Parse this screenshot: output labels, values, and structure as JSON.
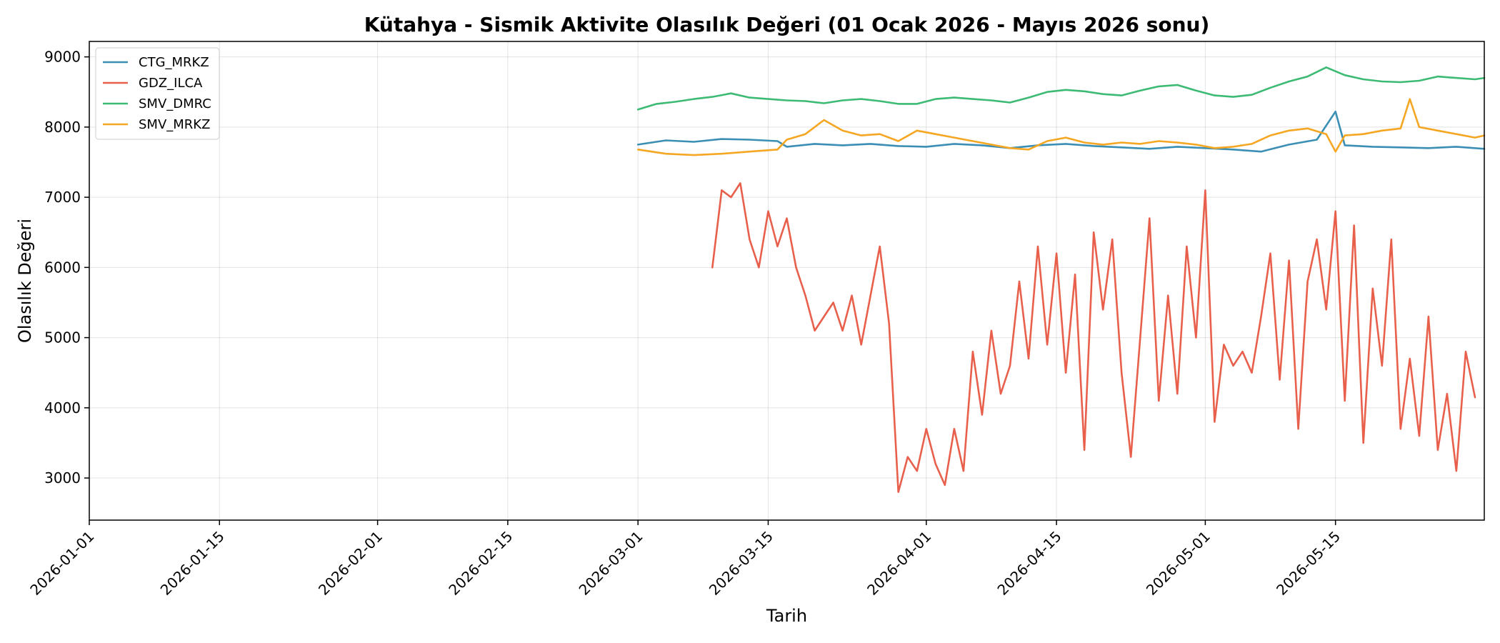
{
  "chart_data": {
    "type": "line",
    "title": "Kütahya - Sismik Aktivite Olasılık Değeri (01 Ocak 2026 - Mayıs 2026 sonu)",
    "xlabel": "Tarih",
    "ylabel": "Olasılık Değeri",
    "x_type": "date",
    "xlim": [
      "2026-01-01",
      "2026-05-31"
    ],
    "ylim": [
      2400,
      9220
    ],
    "x_ticks": [
      "2026-01-01",
      "2026-01-15",
      "2026-02-01",
      "2026-02-15",
      "2026-03-01",
      "2026-03-15",
      "2026-04-01",
      "2026-04-15",
      "2026-05-01",
      "2026-05-15"
    ],
    "y_ticks": [
      3000,
      4000,
      5000,
      6000,
      7000,
      8000,
      9000
    ],
    "grid": true,
    "legend_position": "top-left",
    "series": [
      {
        "name": "CTG_MRKZ",
        "color": "#3b8fb5",
        "points": [
          [
            "2026-03-01",
            7750
          ],
          [
            "2026-03-04",
            7810
          ],
          [
            "2026-03-07",
            7790
          ],
          [
            "2026-03-10",
            7830
          ],
          [
            "2026-03-13",
            7820
          ],
          [
            "2026-03-16",
            7800
          ],
          [
            "2026-03-17",
            7720
          ],
          [
            "2026-03-20",
            7760
          ],
          [
            "2026-03-23",
            7740
          ],
          [
            "2026-03-26",
            7760
          ],
          [
            "2026-03-29",
            7730
          ],
          [
            "2026-04-01",
            7720
          ],
          [
            "2026-04-04",
            7760
          ],
          [
            "2026-04-07",
            7740
          ],
          [
            "2026-04-10",
            7700
          ],
          [
            "2026-04-13",
            7740
          ],
          [
            "2026-04-16",
            7760
          ],
          [
            "2026-04-19",
            7730
          ],
          [
            "2026-04-22",
            7710
          ],
          [
            "2026-04-25",
            7690
          ],
          [
            "2026-04-28",
            7720
          ],
          [
            "2026-05-01",
            7700
          ],
          [
            "2026-05-04",
            7680
          ],
          [
            "2026-05-07",
            7650
          ],
          [
            "2026-05-10",
            7750
          ],
          [
            "2026-05-13",
            7820
          ],
          [
            "2026-05-15",
            8220
          ],
          [
            "2026-05-16",
            7740
          ],
          [
            "2026-05-19",
            7720
          ],
          [
            "2026-05-22",
            7710
          ],
          [
            "2026-05-25",
            7700
          ],
          [
            "2026-05-28",
            7720
          ],
          [
            "2026-05-31",
            7690
          ]
        ]
      },
      {
        "name": "GDZ_ILCA",
        "color": "#e8604c",
        "points": [
          [
            "2026-03-09",
            6000
          ],
          [
            "2026-03-10",
            7100
          ],
          [
            "2026-03-11",
            7000
          ],
          [
            "2026-03-12",
            7200
          ],
          [
            "2026-03-13",
            6400
          ],
          [
            "2026-03-14",
            6000
          ],
          [
            "2026-03-15",
            6800
          ],
          [
            "2026-03-16",
            6300
          ],
          [
            "2026-03-17",
            6700
          ],
          [
            "2026-03-18",
            6000
          ],
          [
            "2026-03-19",
            5600
          ],
          [
            "2026-03-20",
            5100
          ],
          [
            "2026-03-21",
            5300
          ],
          [
            "2026-03-22",
            5500
          ],
          [
            "2026-03-23",
            5100
          ],
          [
            "2026-03-24",
            5600
          ],
          [
            "2026-03-25",
            4900
          ],
          [
            "2026-03-26",
            5600
          ],
          [
            "2026-03-27",
            6300
          ],
          [
            "2026-03-28",
            5200
          ],
          [
            "2026-03-29",
            2800
          ],
          [
            "2026-03-30",
            3300
          ],
          [
            "2026-03-31",
            3100
          ],
          [
            "2026-04-01",
            3700
          ],
          [
            "2026-04-02",
            3200
          ],
          [
            "2026-04-03",
            2900
          ],
          [
            "2026-04-04",
            3700
          ],
          [
            "2026-04-05",
            3100
          ],
          [
            "2026-04-06",
            4800
          ],
          [
            "2026-04-07",
            3900
          ],
          [
            "2026-04-08",
            5100
          ],
          [
            "2026-04-09",
            4200
          ],
          [
            "2026-04-10",
            4600
          ],
          [
            "2026-04-11",
            5800
          ],
          [
            "2026-04-12",
            4700
          ],
          [
            "2026-04-13",
            6300
          ],
          [
            "2026-04-14",
            4900
          ],
          [
            "2026-04-15",
            6200
          ],
          [
            "2026-04-16",
            4500
          ],
          [
            "2026-04-17",
            5900
          ],
          [
            "2026-04-18",
            3400
          ],
          [
            "2026-04-19",
            6500
          ],
          [
            "2026-04-20",
            5400
          ],
          [
            "2026-04-21",
            6400
          ],
          [
            "2026-04-22",
            4500
          ],
          [
            "2026-04-23",
            3300
          ],
          [
            "2026-04-24",
            5000
          ],
          [
            "2026-04-25",
            6700
          ],
          [
            "2026-04-26",
            4100
          ],
          [
            "2026-04-27",
            5600
          ],
          [
            "2026-04-28",
            4200
          ],
          [
            "2026-04-29",
            6300
          ],
          [
            "2026-04-30",
            5000
          ],
          [
            "2026-05-01",
            7100
          ],
          [
            "2026-05-02",
            3800
          ],
          [
            "2026-05-03",
            4900
          ],
          [
            "2026-05-04",
            4600
          ],
          [
            "2026-05-05",
            4800
          ],
          [
            "2026-05-06",
            4500
          ],
          [
            "2026-05-07",
            5300
          ],
          [
            "2026-05-08",
            6200
          ],
          [
            "2026-05-09",
            4400
          ],
          [
            "2026-05-10",
            6100
          ],
          [
            "2026-05-11",
            3700
          ],
          [
            "2026-05-12",
            5800
          ],
          [
            "2026-05-13",
            6400
          ],
          [
            "2026-05-14",
            5400
          ],
          [
            "2026-05-15",
            6800
          ],
          [
            "2026-05-16",
            4100
          ],
          [
            "2026-05-17",
            6600
          ],
          [
            "2026-05-18",
            3500
          ],
          [
            "2026-05-19",
            5700
          ],
          [
            "2026-05-20",
            4600
          ],
          [
            "2026-05-21",
            6400
          ],
          [
            "2026-05-22",
            3700
          ],
          [
            "2026-05-23",
            4700
          ],
          [
            "2026-05-24",
            3600
          ],
          [
            "2026-05-25",
            5300
          ],
          [
            "2026-05-26",
            3400
          ],
          [
            "2026-05-27",
            4200
          ],
          [
            "2026-05-28",
            3100
          ],
          [
            "2026-05-29",
            4800
          ],
          [
            "2026-05-30",
            4150
          ]
        ]
      },
      {
        "name": "SMV_DMRC",
        "color": "#3dba73",
        "points": [
          [
            "2026-03-01",
            8250
          ],
          [
            "2026-03-03",
            8330
          ],
          [
            "2026-03-05",
            8360
          ],
          [
            "2026-03-07",
            8400
          ],
          [
            "2026-03-09",
            8430
          ],
          [
            "2026-03-11",
            8480
          ],
          [
            "2026-03-13",
            8420
          ],
          [
            "2026-03-15",
            8400
          ],
          [
            "2026-03-17",
            8380
          ],
          [
            "2026-03-19",
            8370
          ],
          [
            "2026-03-21",
            8340
          ],
          [
            "2026-03-23",
            8380
          ],
          [
            "2026-03-25",
            8400
          ],
          [
            "2026-03-27",
            8370
          ],
          [
            "2026-03-29",
            8330
          ],
          [
            "2026-03-31",
            8330
          ],
          [
            "2026-04-02",
            8400
          ],
          [
            "2026-04-04",
            8420
          ],
          [
            "2026-04-06",
            8400
          ],
          [
            "2026-04-08",
            8380
          ],
          [
            "2026-04-10",
            8350
          ],
          [
            "2026-04-12",
            8420
          ],
          [
            "2026-04-14",
            8500
          ],
          [
            "2026-04-16",
            8530
          ],
          [
            "2026-04-18",
            8510
          ],
          [
            "2026-04-20",
            8470
          ],
          [
            "2026-04-22",
            8450
          ],
          [
            "2026-04-24",
            8520
          ],
          [
            "2026-04-26",
            8580
          ],
          [
            "2026-04-28",
            8600
          ],
          [
            "2026-04-30",
            8520
          ],
          [
            "2026-05-02",
            8450
          ],
          [
            "2026-05-04",
            8430
          ],
          [
            "2026-05-06",
            8460
          ],
          [
            "2026-05-08",
            8560
          ],
          [
            "2026-05-10",
            8650
          ],
          [
            "2026-05-12",
            8720
          ],
          [
            "2026-05-14",
            8850
          ],
          [
            "2026-05-16",
            8740
          ],
          [
            "2026-05-18",
            8680
          ],
          [
            "2026-05-20",
            8650
          ],
          [
            "2026-05-22",
            8640
          ],
          [
            "2026-05-24",
            8660
          ],
          [
            "2026-05-26",
            8720
          ],
          [
            "2026-05-28",
            8700
          ],
          [
            "2026-05-30",
            8680
          ],
          [
            "2026-05-31",
            8700
          ]
        ]
      },
      {
        "name": "SMV_MRKZ",
        "color": "#f5a623",
        "points": [
          [
            "2026-03-01",
            7680
          ],
          [
            "2026-03-04",
            7620
          ],
          [
            "2026-03-07",
            7600
          ],
          [
            "2026-03-10",
            7620
          ],
          [
            "2026-03-13",
            7650
          ],
          [
            "2026-03-16",
            7680
          ],
          [
            "2026-03-17",
            7820
          ],
          [
            "2026-03-19",
            7900
          ],
          [
            "2026-03-21",
            8100
          ],
          [
            "2026-03-23",
            7950
          ],
          [
            "2026-03-25",
            7880
          ],
          [
            "2026-03-27",
            7900
          ],
          [
            "2026-03-29",
            7800
          ],
          [
            "2026-03-31",
            7950
          ],
          [
            "2026-04-02",
            7900
          ],
          [
            "2026-04-04",
            7850
          ],
          [
            "2026-04-06",
            7800
          ],
          [
            "2026-04-08",
            7750
          ],
          [
            "2026-04-10",
            7700
          ],
          [
            "2026-04-12",
            7680
          ],
          [
            "2026-04-14",
            7800
          ],
          [
            "2026-04-16",
            7850
          ],
          [
            "2026-04-18",
            7780
          ],
          [
            "2026-04-20",
            7750
          ],
          [
            "2026-04-22",
            7780
          ],
          [
            "2026-04-24",
            7760
          ],
          [
            "2026-04-26",
            7800
          ],
          [
            "2026-04-28",
            7780
          ],
          [
            "2026-04-30",
            7750
          ],
          [
            "2026-05-02",
            7700
          ],
          [
            "2026-05-04",
            7720
          ],
          [
            "2026-05-06",
            7760
          ],
          [
            "2026-05-08",
            7880
          ],
          [
            "2026-05-10",
            7950
          ],
          [
            "2026-05-12",
            7980
          ],
          [
            "2026-05-14",
            7900
          ],
          [
            "2026-05-15",
            7650
          ],
          [
            "2026-05-16",
            7880
          ],
          [
            "2026-05-18",
            7900
          ],
          [
            "2026-05-20",
            7950
          ],
          [
            "2026-05-22",
            7980
          ],
          [
            "2026-05-23",
            8400
          ],
          [
            "2026-05-24",
            8000
          ],
          [
            "2026-05-26",
            7950
          ],
          [
            "2026-05-28",
            7900
          ],
          [
            "2026-05-30",
            7850
          ],
          [
            "2026-05-31",
            7880
          ]
        ]
      }
    ]
  }
}
